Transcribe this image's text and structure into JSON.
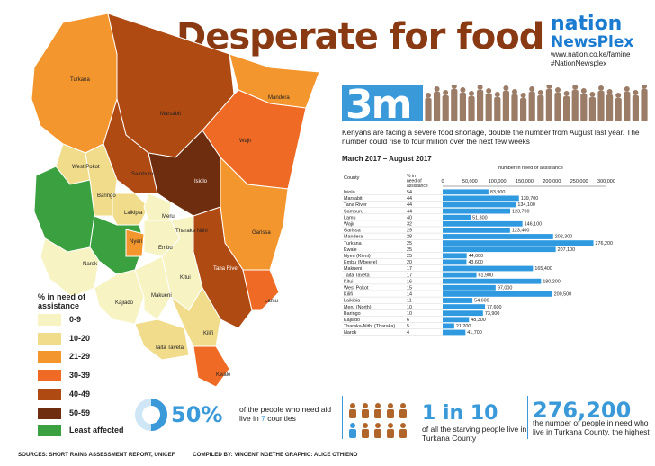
{
  "title": "Desperate for food",
  "logo": {
    "line1": "nation",
    "line2": "NewsPlex",
    "url": "www.nation.co.ke/famine",
    "hashtag": "#NationNewsplex"
  },
  "headline_stat": "3m",
  "intro": "Kenyans are facing a severe food shortage, double the number from August last year. The number could rise to four million over the next few weeks",
  "map": {
    "legend_title_1": "%  in need of",
    "legend_title_2": "assistance",
    "legend": [
      {
        "label": "0-9",
        "color": "#f7f3c2"
      },
      {
        "label": "10-20",
        "color": "#f0dc8a"
      },
      {
        "label": "21-29",
        "color": "#f4962e"
      },
      {
        "label": "30-39",
        "color": "#ef6b25"
      },
      {
        "label": "40-49",
        "color": "#b04a13"
      },
      {
        "label": "50-59",
        "color": "#6e2d0e"
      },
      {
        "label": "Least affected",
        "color": "#3aa040"
      }
    ],
    "labels": [
      "Turkana",
      "Marsabit",
      "Mandera",
      "Wajir",
      "Samburu",
      "Isiolo",
      "West Pokot",
      "Baringo",
      "Laikipia",
      "Meru",
      "Nyeri",
      "Embu",
      "Tharaka Nithi",
      "Garissa",
      "Narok",
      "Kajiado",
      "Makueni",
      "Kitui",
      "Tana River",
      "Lamu",
      "Taita Taveta",
      "Kilifi",
      "Kwale"
    ]
  },
  "chart_data": {
    "type": "bar",
    "period": "March 2017 – August 2017",
    "axis_title": "number in need of assistance",
    "col_county": "County",
    "col_pct": "% in need of assistance",
    "xlim": [
      0,
      300000
    ],
    "ticks": [
      "0",
      "50,000",
      "100,000",
      "150,000",
      "200,000",
      "250,000",
      "300,000"
    ],
    "tick_values": [
      0,
      50000,
      100000,
      150000,
      200000,
      250000,
      300000
    ],
    "categories": [
      "Isiolo",
      "Marsabit",
      "Tana River",
      "Samburu",
      "Lamu",
      "Wajir",
      "Garissa",
      "Mandera",
      "Turkana",
      "Kwale",
      "Nyeri (Kieni)",
      "Embu (Mbeere)",
      "Makueni",
      "Taita Taveta",
      "Kitui",
      "West Pokot",
      "Kilifi",
      "Laikipia",
      "Meru (North)",
      "Baringo",
      "Kajiado",
      "Tharaka-Nithi (Tharaka)",
      "Narok"
    ],
    "percent": [
      54,
      44,
      44,
      44,
      40,
      32,
      29,
      28,
      25,
      25,
      25,
      20,
      17,
      17,
      16,
      15,
      14,
      11,
      10,
      10,
      6,
      5,
      4
    ],
    "values": [
      83900,
      139700,
      134100,
      123700,
      51300,
      146100,
      123400,
      202300,
      276200,
      207100,
      44000,
      43600,
      165400,
      61900,
      180200,
      97000,
      200500,
      54600,
      77600,
      73900,
      48300,
      21200,
      41700
    ],
    "value_labels": [
      "83,900",
      "139,700",
      "134,100",
      "123,700",
      "51,300",
      "146,100",
      "123,400",
      "202,300",
      "276,200",
      "207,100",
      "44,000",
      "43,600",
      "165,400",
      "61,900",
      "180,200",
      "97,000",
      "200,500",
      "54,600",
      "77,600",
      "73,900",
      "48,300",
      "21,200",
      "41,700"
    ],
    "bar_color": "#2f9ae0"
  },
  "stats": {
    "fifty": "50%",
    "fifty_desc_a": "of the people who need aid live in ",
    "fifty_desc_b": "7",
    "fifty_desc_c": " counties",
    "one_in_10": "1 in 10",
    "one_in_10_desc": "of all the starving people live in Turkana County",
    "big_number": "276,200",
    "big_number_desc": "the number of people in need who live in Turkana County, the highest"
  },
  "footer": {
    "sources": "SOURCES: SHORT RAINS ASSESSMENT REPORT, UNICEF",
    "compiled": "COMPILED BY: VINCENT NGETHE  GRAPHIC: ALICE OTHIENO"
  }
}
